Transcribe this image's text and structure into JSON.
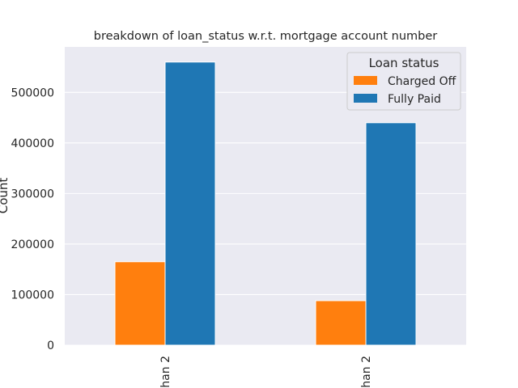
{
  "chart_data": {
    "type": "bar",
    "title": "breakdown of loan_status w.r.t. mortgage account number",
    "xlabel": "",
    "ylabel": "Count",
    "categories": [
      "han 2",
      "han 2"
    ],
    "series": [
      {
        "name": "Charged Off",
        "color": "#ff7f0e",
        "values": [
          165000,
          88000
        ]
      },
      {
        "name": "Fully Paid",
        "color": "#1f77b4",
        "values": [
          560000,
          440000
        ]
      }
    ],
    "ylim": [
      0,
      590000
    ],
    "yticks": [
      0,
      100000,
      200000,
      300000,
      400000,
      500000
    ],
    "ytick_labels": [
      "0",
      "100000",
      "200000",
      "300000",
      "400000",
      "500000"
    ],
    "grid": true,
    "legend": {
      "title": "Loan status",
      "position": "top-right"
    },
    "colors": {
      "plot_background": "#eaeaf2",
      "grid": "#ffffff"
    }
  }
}
